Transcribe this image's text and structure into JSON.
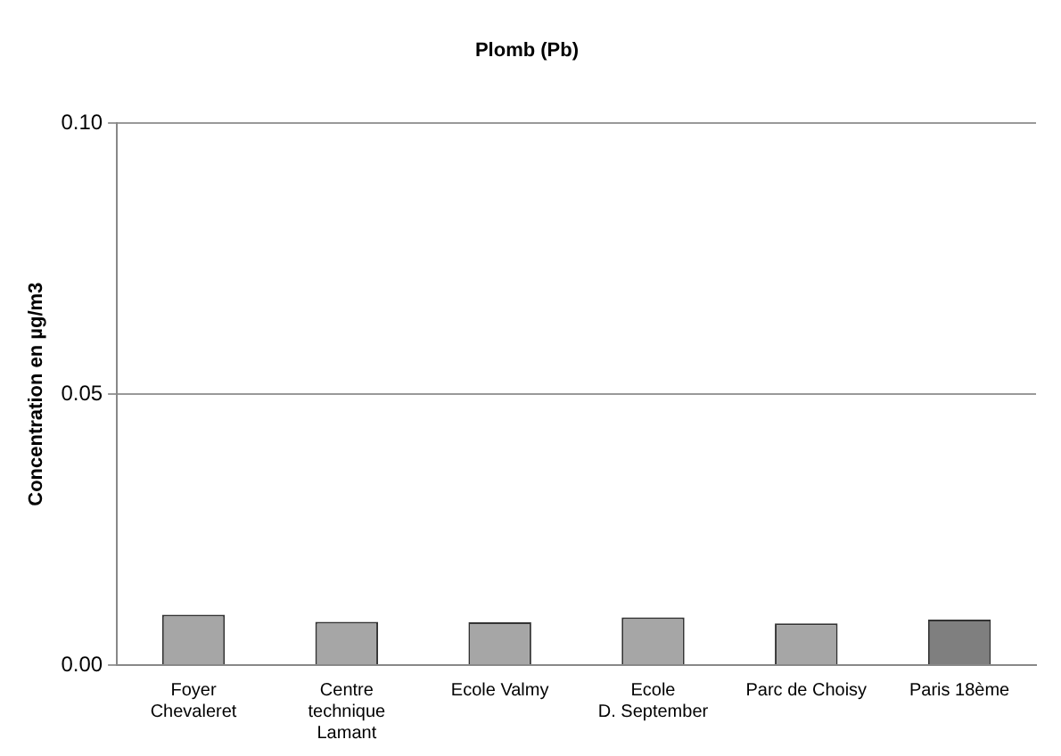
{
  "chart_data": {
    "type": "bar",
    "title": "Plomb (Pb)",
    "ylabel": "Concentration en µg/m3",
    "categories": [
      "Foyer\nChevaleret",
      "Centre\ntechnique\nLamant",
      "Ecole Valmy",
      "Ecole\nD. September",
      "Parc de Choisy",
      "Paris 18ème"
    ],
    "values": [
      0.0093,
      0.008,
      0.0079,
      0.0088,
      0.0077,
      0.0084
    ],
    "colors": [
      "#a6a6a6",
      "#a6a6a6",
      "#a6a6a6",
      "#a6a6a6",
      "#a6a6a6",
      "#7f7f7f"
    ],
    "ylim": [
      0,
      0.1
    ],
    "yticks": [
      {
        "value": 0,
        "label": "0.00"
      },
      {
        "value": 0.05,
        "label": "0.05"
      },
      {
        "value": 0.1,
        "label": "0.10"
      }
    ],
    "grid": "y",
    "legend": false
  }
}
